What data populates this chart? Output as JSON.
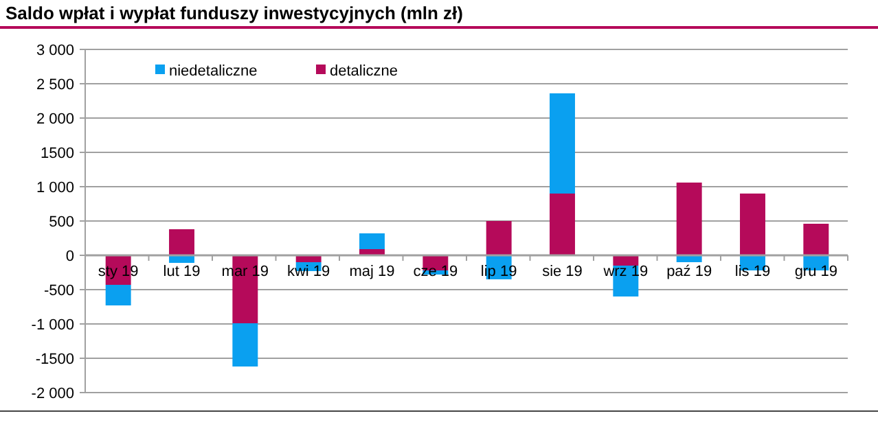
{
  "chart_data": {
    "type": "bar",
    "title": "Saldo wpłat i wypłat funduszy inwestycyjnych (mln zł)",
    "categories": [
      "sty 19",
      "lut 19",
      "mar 19",
      "kwi 19",
      "maj 19",
      "cze 19",
      "lip 19",
      "sie 19",
      "wrz 19",
      "paź 19",
      "lis 19",
      "gru 19"
    ],
    "series": [
      {
        "name": "detaliczne",
        "color": "#b50a5a",
        "values": [
          -430,
          380,
          -990,
          -100,
          90,
          -220,
          500,
          900,
          -150,
          1060,
          900,
          460
        ]
      },
      {
        "name": "niedetaliczne",
        "color": "#0aa0f0",
        "values": [
          -300,
          -110,
          -630,
          -130,
          230,
          -60,
          -350,
          1460,
          -450,
          -100,
          -220,
          -220
        ]
      }
    ],
    "stacked": true,
    "ylim": [
      -2000,
      3000
    ],
    "yticks": [
      {
        "value": -2000,
        "label": "-2 000"
      },
      {
        "value": -1500,
        "label": "-1500"
      },
      {
        "value": -1000,
        "label": "-1 000"
      },
      -500,
      0,
      500,
      {
        "value": 1000,
        "label": "1 000"
      },
      {
        "value": 1500,
        "label": "1500"
      },
      {
        "value": 2000,
        "label": "2 000"
      },
      {
        "value": 2500,
        "label": "2 500"
      },
      {
        "value": 3000,
        "label": "3 000"
      }
    ],
    "grid": "y",
    "legend": "top"
  }
}
